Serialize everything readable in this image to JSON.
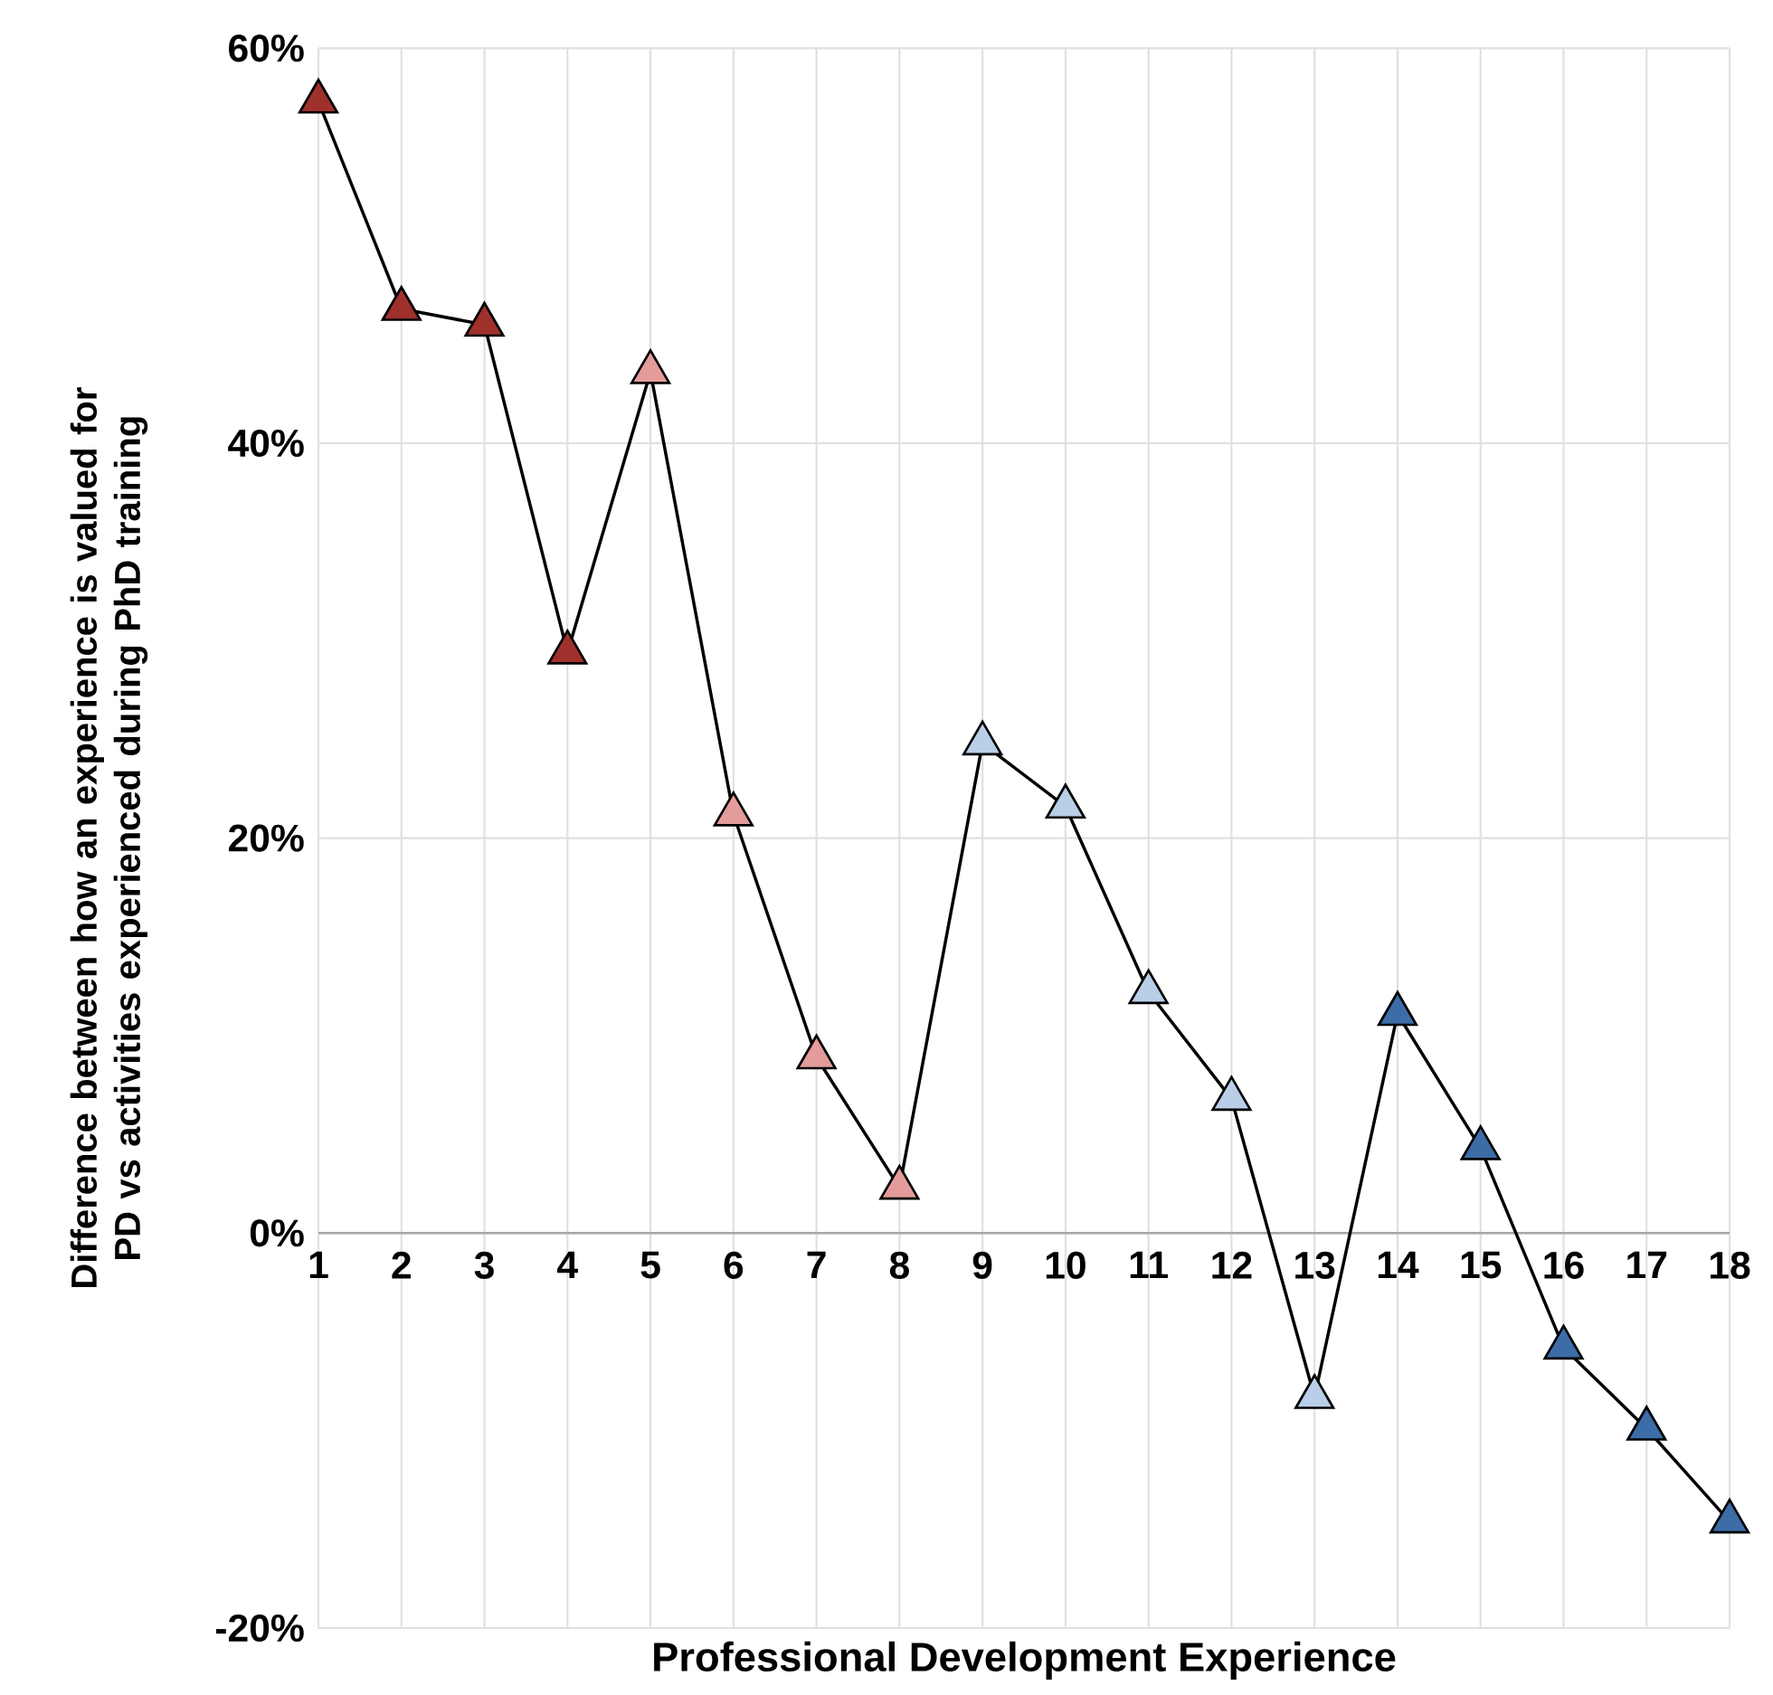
{
  "chart_data": {
    "type": "line",
    "xlabel": "Professional Development Experience",
    "ylabel": "Difference between how an experience is valued for PD vs activities experienced during PhD training",
    "categories": [
      "1",
      "2",
      "3",
      "4",
      "5",
      "6",
      "7",
      "8",
      "9",
      "10",
      "11",
      "12",
      "13",
      "14",
      "15",
      "16",
      "17",
      "18"
    ],
    "values": [
      57.3,
      46.8,
      46.0,
      29.4,
      43.6,
      21.2,
      8.9,
      2.3,
      24.8,
      21.6,
      12.2,
      6.8,
      -8.3,
      11.1,
      4.3,
      -5.8,
      -9.9,
      -14.6
    ],
    "color": "#000000",
    "colors": [
      "#a0302c",
      "#a0302c",
      "#a0302c",
      "#a0302c",
      "#e39c9a",
      "#e39c9a",
      "#e39c9a",
      "#e39c9a",
      "#b9cfe8",
      "#b9cfe8",
      "#b9cfe8",
      "#b9cfe8",
      "#b9cfe8",
      "#3c6da6",
      "#3c6da6",
      "#3c6da6",
      "#3c6da6",
      "#3c6da6"
    ],
    "marker": "triangle",
    "ylim": [
      -20,
      60
    ],
    "yticks": [
      {
        "value": -20,
        "label": "-20%"
      },
      {
        "value": 0,
        "label": "0%"
      },
      {
        "value": 20,
        "label": "20%"
      },
      {
        "value": 40,
        "label": "40%"
      },
      {
        "value": 60,
        "label": "60%"
      }
    ],
    "grid": true
  }
}
